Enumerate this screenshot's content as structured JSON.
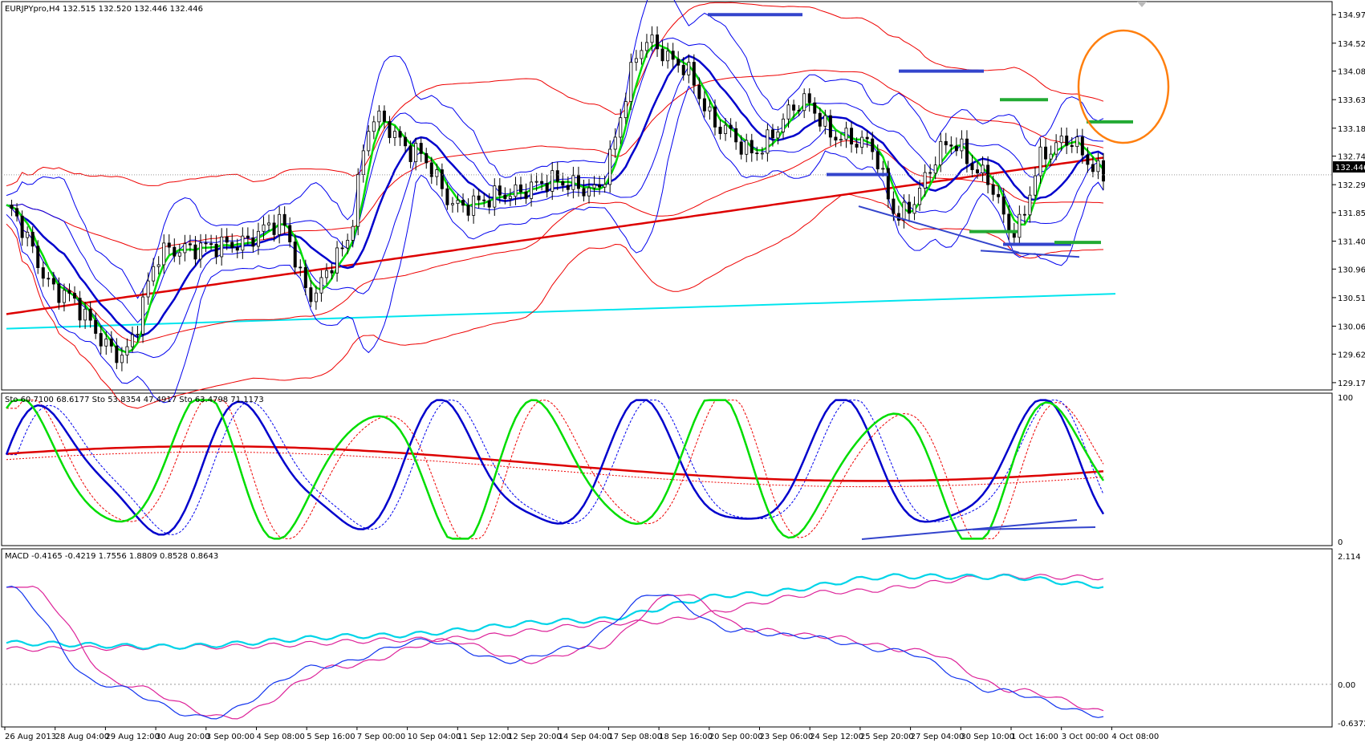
{
  "chart_data": [
    {
      "type": "line",
      "header": "EURJPYpro,H4  132.515 132.520 132.446 132.446",
      "symbol": "EURJPYpro",
      "timeframe": "H4",
      "ohlc": {
        "open": 132.515,
        "high": 132.52,
        "low": 132.446,
        "close": 132.446
      },
      "current_price_label": "132.446",
      "y_tick_labels": [
        "134.970",
        "134.520",
        "134.080",
        "133.630",
        "133.180",
        "132.740",
        "132.290",
        "131.850",
        "131.400",
        "130.960",
        "130.510",
        "130.060",
        "129.620",
        "129.170"
      ],
      "y_ticks": [
        134.97,
        134.52,
        134.08,
        133.63,
        133.18,
        132.74,
        132.29,
        131.85,
        131.4,
        130.96,
        130.51,
        130.06,
        129.62,
        129.17
      ],
      "ylim": [
        129.08,
        135.15
      ],
      "colors": {
        "candle": "#000000",
        "fast_ma": "#00dd00",
        "mid_ma": "#0000cc",
        "long_ma": "#dd0000",
        "bands_blue": "#0000ee",
        "bands_red": "#ee0000",
        "level_line": "#00e5ee",
        "annotation_circle": "#ff7f0e",
        "marker_blue": "#3344cc",
        "marker_green": "#22aa33"
      }
    },
    {
      "type": "line",
      "header": "Sto 60.7100 68.6177  Sto 53.8354 47.4917  Sto 63.4798 71.1173",
      "values": [
        60.71,
        68.6177,
        53.8354,
        47.4917,
        63.4798,
        71.1173
      ],
      "y_tick_labels": [
        "100",
        "0"
      ],
      "ylim": [
        0,
        100
      ]
    },
    {
      "type": "line",
      "header": "MACD -0.4165 -0.4219 1.7556 1.8809 0.8528 0.8643",
      "values": [
        -0.4165,
        -0.4219,
        1.7556,
        1.8809,
        0.8528,
        0.8643
      ],
      "y_tick_labels": [
        "2.114",
        "0.00",
        "-0.6372"
      ],
      "ylim": [
        -0.6372,
        2.114
      ]
    }
  ],
  "time_axis": [
    "26 Aug 2013",
    "28 Aug 04:00",
    "29 Aug 12:00",
    "30 Aug 20:00",
    "3 Sep 00:00",
    "4 Sep 08:00",
    "5 Sep 16:00",
    "7 Sep 00:00",
    "10 Sep 04:00",
    "11 Sep 12:00",
    "12 Sep 20:00",
    "14 Sep 04:00",
    "17 Sep 08:00",
    "18 Sep 16:00",
    "20 Sep 00:00",
    "23 Sep 06:00",
    "24 Sep 12:00",
    "25 Sep 20:00",
    "27 Sep 04:00",
    "30 Sep 10:00",
    "1 Oct 16:00",
    "3 Oct 00:00",
    "4 Oct 08:00"
  ]
}
